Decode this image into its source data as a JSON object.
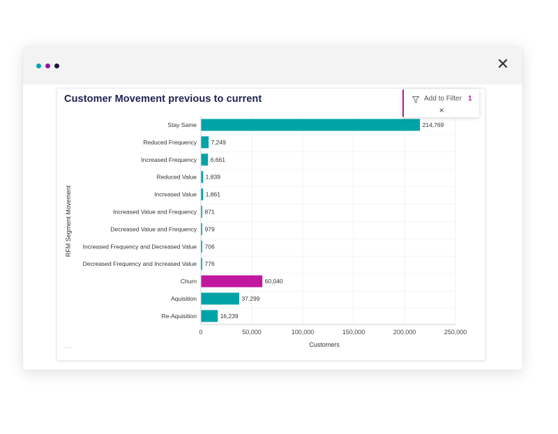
{
  "window": {
    "dots": [
      {
        "color": "#00a6a6"
      },
      {
        "color": "#8b1a9c"
      },
      {
        "color": "#1d1340"
      }
    ],
    "close_icon": "close-icon",
    "close_glyph": "✕"
  },
  "card": {
    "title": "Customer Movement previous to current",
    "more_label": "...",
    "filter": {
      "icon": "filter-icon",
      "label": "Add to Filter",
      "count": "1",
      "clear_glyph": "×"
    }
  },
  "chart_data": {
    "type": "bar",
    "orientation": "horizontal",
    "title": "Customer Movement previous to current",
    "xlabel": "Customers",
    "ylabel": "RFM Segment Movement",
    "xlim": [
      0,
      250000
    ],
    "xticks": [
      0,
      50000,
      100000,
      150000,
      200000,
      250000
    ],
    "xtick_labels": [
      "0",
      "50,000",
      "100,000",
      "150,000",
      "200,000",
      "250,000"
    ],
    "grid": true,
    "categories": [
      "Stay Same",
      "Reduced Frequency",
      "Increased Frequency",
      "Reduced Value",
      "Increased Value",
      "Increased Value and Frequency",
      "Decreased Value and Frequency",
      "Increased Frequency and Decreased Value",
      "Decreased Frequency and Increased Value",
      "Churn",
      "Aquisition",
      "Re-Aquisition"
    ],
    "values": [
      214769,
      7249,
      6661,
      1839,
      1861,
      871,
      979,
      706,
      776,
      60040,
      37299,
      16239
    ],
    "value_labels": [
      "214,769",
      "7,249",
      "6,661",
      "1,839",
      "1,861",
      "871",
      "979",
      "706",
      "776",
      "60,040",
      "37,299",
      "16,239"
    ],
    "colors": [
      "#00a3a6",
      "#00a3a6",
      "#00a3a6",
      "#00a3a6",
      "#00a3a6",
      "#00a3a6",
      "#00a3a6",
      "#00a3a6",
      "#00a3a6",
      "#c0189f",
      "#00a3a6",
      "#00a3a6"
    ]
  }
}
